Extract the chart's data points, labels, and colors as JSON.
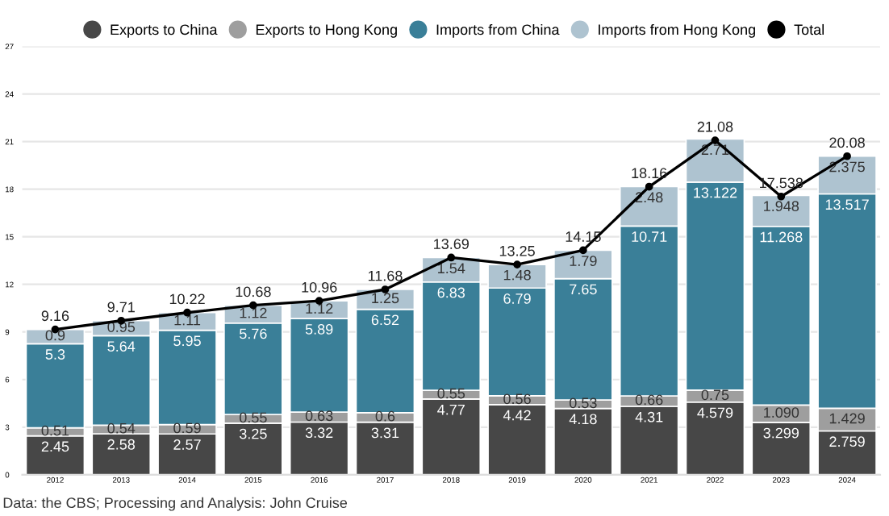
{
  "chart_data": {
    "type": "bar",
    "stacked": true,
    "categories": [
      "2012",
      "2013",
      "2014",
      "2015",
      "2016",
      "2017",
      "2018",
      "2019",
      "2020",
      "2021",
      "2022",
      "2023",
      "2024"
    ],
    "series": [
      {
        "name": "Exports to China",
        "color": "#474747",
        "values": [
          2.45,
          2.58,
          2.57,
          3.25,
          3.32,
          3.31,
          4.77,
          4.42,
          4.18,
          4.31,
          4.579,
          3.299,
          2.759
        ],
        "value_labels": [
          "2.45",
          "2.58",
          "2.57",
          "3.25",
          "3.32",
          "3.31",
          "4.77",
          "4.42",
          "4.18",
          "4.31",
          "4.579",
          "3.299",
          "2.759"
        ]
      },
      {
        "name": "Exports to Hong Kong",
        "color": "#9e9e9e",
        "values": [
          0.51,
          0.54,
          0.59,
          0.55,
          0.63,
          0.6,
          0.55,
          0.56,
          0.53,
          0.66,
          0.75,
          1.09,
          1.429
        ],
        "value_labels": [
          "0.51",
          "0.54",
          "0.59",
          "0.55",
          "0.63",
          "0.6",
          "0.55",
          "0.56",
          "0.53",
          "0.66",
          "0.75",
          "1.090",
          "1.429"
        ]
      },
      {
        "name": "Imports from China",
        "color": "#3a7f98",
        "values": [
          5.3,
          5.64,
          5.95,
          5.76,
          5.89,
          6.52,
          6.83,
          6.79,
          7.65,
          10.71,
          13.122,
          11.268,
          13.517
        ],
        "value_labels": [
          "5.3",
          "5.64",
          "5.95",
          "5.76",
          "5.89",
          "6.52",
          "6.83",
          "6.79",
          "7.65",
          "10.71",
          "13.122",
          "11.268",
          "13.517"
        ]
      },
      {
        "name": "Imports from Hong Kong",
        "color": "#aec3d0",
        "values": [
          0.9,
          0.95,
          1.11,
          1.12,
          1.12,
          1.25,
          1.54,
          1.48,
          1.79,
          2.48,
          2.71,
          1.948,
          2.375
        ],
        "value_labels": [
          "0.9",
          "0.95",
          "1.11",
          "1.12",
          "1.12",
          "1.25",
          "1.54",
          "1.48",
          "1.79",
          "2.48",
          "2.71",
          "1.948",
          "2.375"
        ]
      },
      {
        "name": "Total",
        "type": "line",
        "color": "#000000",
        "marker": "circle",
        "values": [
          9.16,
          9.71,
          10.22,
          10.68,
          10.96,
          11.68,
          13.69,
          13.25,
          14.15,
          18.16,
          21.08,
          17.538,
          20.08
        ],
        "value_labels": [
          "9.16",
          "9.71",
          "10.22",
          "10.68",
          "10.96",
          "11.68",
          "13.69",
          "13.25",
          "14.15",
          "18.16",
          "21.08",
          "17.538",
          "20.08"
        ]
      }
    ],
    "ylim": [
      0,
      27
    ],
    "yticks": [
      0,
      3,
      6,
      9,
      12,
      15,
      18,
      21,
      24,
      27
    ],
    "grid": "y",
    "legend": "top",
    "annotations": [
      "Data: the CBS; Processing and Analysis: John Cruise"
    ]
  }
}
